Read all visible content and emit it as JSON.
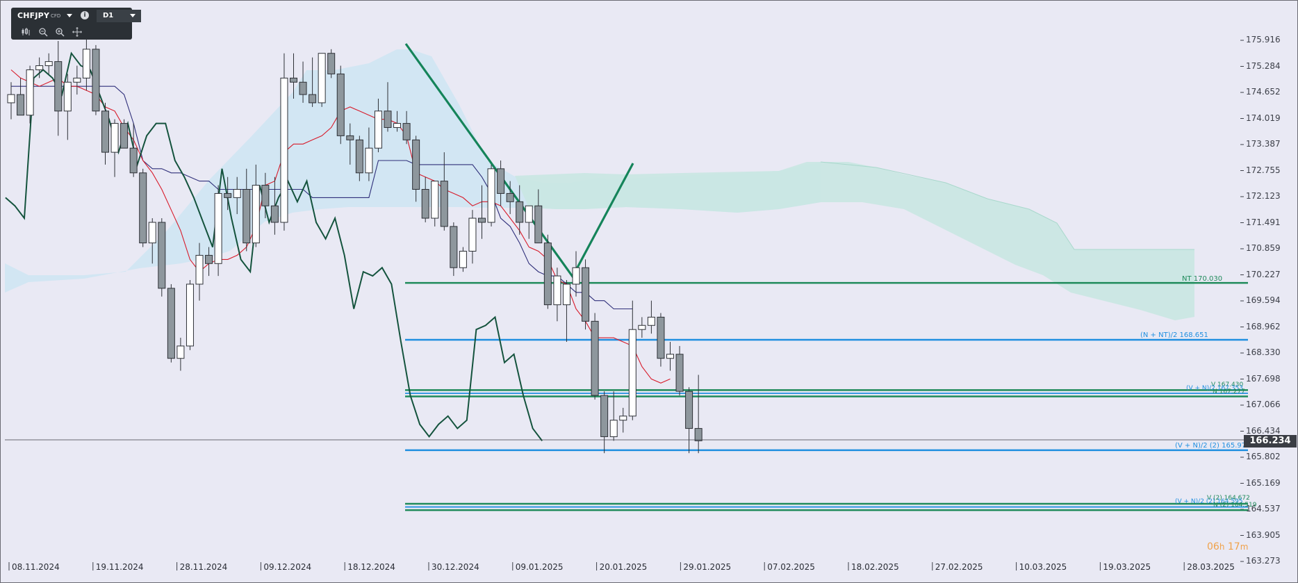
{
  "toolbar": {
    "symbol": "CHFJPY",
    "instrument_type": "CFD",
    "timeframe": "D1",
    "tools": [
      "candles-icon",
      "zoom-out-icon",
      "zoom-in-icon",
      "crosshair-icon"
    ]
  },
  "price_axis": {
    "labels": [
      "175.916",
      "175.284",
      "174.652",
      "174.019",
      "173.387",
      "172.755",
      "172.123",
      "171.491",
      "170.859",
      "170.227",
      "169.594",
      "168.962",
      "168.330",
      "167.698",
      "167.066",
      "166.434",
      "165.802",
      "165.169",
      "164.537",
      "163.905",
      "163.273"
    ],
    "current_price": "166.234"
  },
  "time_axis": {
    "labels": [
      "08.11.2024",
      "19.11.2024",
      "28.11.2024",
      "09.12.2024",
      "18.12.2024",
      "30.12.2024",
      "09.01.2025",
      "20.01.2025",
      "29.01.2025",
      "07.02.2025",
      "18.02.2025",
      "27.02.2025",
      "10.03.2025",
      "19.03.2025",
      "28.03.2025"
    ]
  },
  "levels": {
    "nt": "NT 170.030",
    "n_nt": "(N + NT)/2 168.651",
    "v_upper": "V 167.430",
    "vn_upper": "(V + N)/2 167.353",
    "n_upper": "N 167.277",
    "vn2": "(V + N)/2 (2) 165.972",
    "v2": "V (2) 164.672",
    "vn2b": "(V + N)/2 (2) 164.595",
    "n2": "N (2) 164.519"
  },
  "countdown": {
    "hours": "06",
    "h_unit": "h",
    "minutes": "17",
    "m_unit": "m"
  },
  "colors": {
    "background": "#e9e9f4",
    "bull_candle": "#ffffff",
    "bear_candle": "#8e979d",
    "tenkan": "#d81b2a",
    "kijun": "#2f2f7a",
    "chikou": "#14533d",
    "cloud_bull": "#c8e6f0",
    "cloud_bear": "#cdeae3",
    "level_green": "#1e8a5a",
    "level_blue": "#1f8fe0"
  },
  "chart_data": {
    "type": "candlestick",
    "indicators": [
      "Ichimoku Kinko Hyo"
    ],
    "y_range": [
      163.273,
      176.1
    ],
    "current_price": 166.234,
    "candles": [
      {
        "o": 174.4,
        "h": 174.9,
        "l": 174.0,
        "c": 174.6
      },
      {
        "o": 174.6,
        "h": 175.0,
        "l": 174.1,
        "c": 174.1
      },
      {
        "o": 174.1,
        "h": 175.3,
        "l": 173.9,
        "c": 175.2
      },
      {
        "o": 175.2,
        "h": 175.5,
        "l": 175.0,
        "c": 175.3
      },
      {
        "o": 175.3,
        "h": 175.6,
        "l": 175.1,
        "c": 175.4
      },
      {
        "o": 175.4,
        "h": 175.9,
        "l": 173.6,
        "c": 174.2
      },
      {
        "o": 174.2,
        "h": 175.1,
        "l": 173.5,
        "c": 174.9
      },
      {
        "o": 174.9,
        "h": 175.3,
        "l": 174.6,
        "c": 175.0
      },
      {
        "o": 175.0,
        "h": 176.0,
        "l": 174.7,
        "c": 175.7
      },
      {
        "o": 175.7,
        "h": 175.8,
        "l": 174.1,
        "c": 174.2
      },
      {
        "o": 174.2,
        "h": 174.4,
        "l": 172.9,
        "c": 173.2
      },
      {
        "o": 173.2,
        "h": 174.0,
        "l": 172.6,
        "c": 173.9
      },
      {
        "o": 173.9,
        "h": 174.0,
        "l": 173.3,
        "c": 173.3
      },
      {
        "o": 173.3,
        "h": 173.9,
        "l": 172.6,
        "c": 172.7
      },
      {
        "o": 172.7,
        "h": 172.8,
        "l": 170.9,
        "c": 171.0
      },
      {
        "o": 171.0,
        "h": 171.6,
        "l": 170.5,
        "c": 171.5
      },
      {
        "o": 171.5,
        "h": 171.6,
        "l": 169.7,
        "c": 169.9
      },
      {
        "o": 169.9,
        "h": 170.0,
        "l": 168.1,
        "c": 168.2
      },
      {
        "o": 168.2,
        "h": 168.7,
        "l": 167.9,
        "c": 168.5
      },
      {
        "o": 168.5,
        "h": 170.1,
        "l": 168.4,
        "c": 170.0
      },
      {
        "o": 170.0,
        "h": 171.0,
        "l": 169.6,
        "c": 170.7
      },
      {
        "o": 170.7,
        "h": 170.9,
        "l": 170.2,
        "c": 170.5
      },
      {
        "o": 170.5,
        "h": 172.4,
        "l": 170.2,
        "c": 172.2
      },
      {
        "o": 172.2,
        "h": 172.6,
        "l": 171.8,
        "c": 172.1
      },
      {
        "o": 172.1,
        "h": 172.6,
        "l": 171.7,
        "c": 172.3
      },
      {
        "o": 172.3,
        "h": 172.8,
        "l": 170.8,
        "c": 171.0
      },
      {
        "o": 171.0,
        "h": 172.9,
        "l": 170.9,
        "c": 172.4
      },
      {
        "o": 172.4,
        "h": 172.7,
        "l": 171.6,
        "c": 171.9
      },
      {
        "o": 171.9,
        "h": 172.6,
        "l": 171.2,
        "c": 171.5
      },
      {
        "o": 171.5,
        "h": 175.6,
        "l": 171.3,
        "c": 175.0
      },
      {
        "o": 175.0,
        "h": 175.6,
        "l": 174.5,
        "c": 174.9
      },
      {
        "o": 174.9,
        "h": 175.4,
        "l": 174.4,
        "c": 174.6
      },
      {
        "o": 174.6,
        "h": 175.5,
        "l": 174.3,
        "c": 174.4
      },
      {
        "o": 174.4,
        "h": 175.6,
        "l": 174.3,
        "c": 175.6
      },
      {
        "o": 175.6,
        "h": 175.7,
        "l": 175.0,
        "c": 175.1
      },
      {
        "o": 175.1,
        "h": 175.3,
        "l": 173.4,
        "c": 173.6
      },
      {
        "o": 173.6,
        "h": 173.9,
        "l": 172.9,
        "c": 173.5
      },
      {
        "o": 173.5,
        "h": 173.6,
        "l": 172.5,
        "c": 172.7
      },
      {
        "o": 172.7,
        "h": 173.8,
        "l": 172.5,
        "c": 173.3
      },
      {
        "o": 173.3,
        "h": 174.5,
        "l": 173.2,
        "c": 174.2
      },
      {
        "o": 174.2,
        "h": 174.9,
        "l": 173.7,
        "c": 173.8
      },
      {
        "o": 173.8,
        "h": 174.2,
        "l": 173.7,
        "c": 173.9
      },
      {
        "o": 173.9,
        "h": 174.2,
        "l": 173.4,
        "c": 173.5
      },
      {
        "o": 173.5,
        "h": 173.6,
        "l": 172.0,
        "c": 172.3
      },
      {
        "o": 172.3,
        "h": 172.6,
        "l": 171.5,
        "c": 171.6
      },
      {
        "o": 171.6,
        "h": 172.5,
        "l": 171.4,
        "c": 172.5
      },
      {
        "o": 172.5,
        "h": 173.2,
        "l": 171.3,
        "c": 171.4
      },
      {
        "o": 171.4,
        "h": 171.5,
        "l": 170.2,
        "c": 170.4
      },
      {
        "o": 170.4,
        "h": 170.9,
        "l": 170.3,
        "c": 170.8
      },
      {
        "o": 170.8,
        "h": 171.8,
        "l": 170.5,
        "c": 171.6
      },
      {
        "o": 171.6,
        "h": 172.4,
        "l": 171.1,
        "c": 171.5
      },
      {
        "o": 171.5,
        "h": 172.9,
        "l": 171.4,
        "c": 172.8
      },
      {
        "o": 172.8,
        "h": 173.0,
        "l": 171.9,
        "c": 172.2
      },
      {
        "o": 172.2,
        "h": 172.5,
        "l": 171.7,
        "c": 172.0
      },
      {
        "o": 172.0,
        "h": 172.4,
        "l": 171.2,
        "c": 171.5
      },
      {
        "o": 171.5,
        "h": 171.9,
        "l": 171.1,
        "c": 171.9
      },
      {
        "o": 171.9,
        "h": 172.3,
        "l": 171.1,
        "c": 171.0
      },
      {
        "o": 171.0,
        "h": 171.2,
        "l": 169.4,
        "c": 169.5
      },
      {
        "o": 169.5,
        "h": 170.4,
        "l": 169.1,
        "c": 170.2
      },
      {
        "o": 169.5,
        "h": 170.1,
        "l": 168.6,
        "c": 170.0
      },
      {
        "o": 170.0,
        "h": 170.8,
        "l": 169.7,
        "c": 170.4
      },
      {
        "o": 170.4,
        "h": 170.6,
        "l": 168.9,
        "c": 169.1
      },
      {
        "o": 169.1,
        "h": 169.3,
        "l": 167.2,
        "c": 167.3
      },
      {
        "o": 167.3,
        "h": 167.4,
        "l": 165.9,
        "c": 166.3
      },
      {
        "o": 166.3,
        "h": 167.4,
        "l": 166.2,
        "c": 166.7
      },
      {
        "o": 166.7,
        "h": 167.0,
        "l": 166.4,
        "c": 166.8
      },
      {
        "o": 166.8,
        "h": 169.6,
        "l": 166.7,
        "c": 168.9
      },
      {
        "o": 168.9,
        "h": 169.2,
        "l": 168.7,
        "c": 169.0
      },
      {
        "o": 169.0,
        "h": 169.6,
        "l": 168.8,
        "c": 169.2
      },
      {
        "o": 169.2,
        "h": 169.3,
        "l": 168.0,
        "c": 168.2
      },
      {
        "o": 168.2,
        "h": 168.6,
        "l": 167.9,
        "c": 168.3
      },
      {
        "o": 168.3,
        "h": 168.5,
        "l": 167.3,
        "c": 167.4
      },
      {
        "o": 167.4,
        "h": 167.5,
        "l": 165.9,
        "c": 166.5
      },
      {
        "o": 166.5,
        "h": 167.8,
        "l": 165.9,
        "c": 166.2
      }
    ],
    "tenkan_sen": [
      175.2,
      175.0,
      174.9,
      174.8,
      174.9,
      175.0,
      174.8,
      174.8,
      174.7,
      174.6,
      174.3,
      174.2,
      173.8,
      173.5,
      173.0,
      172.7,
      172.3,
      171.8,
      171.3,
      170.6,
      170.3,
      170.5,
      170.6,
      170.6,
      170.7,
      170.9,
      171.4,
      172.4,
      172.5,
      173.2,
      173.4,
      173.4,
      173.5,
      173.6,
      173.8,
      174.2,
      174.3,
      174.2,
      174.1,
      174.0,
      174.0,
      173.9,
      173.6,
      172.7,
      172.6,
      172.5,
      172.3,
      172.2,
      172.1,
      171.9,
      172.0,
      172.0,
      171.9,
      171.6,
      171.3,
      170.9,
      170.8,
      170.6,
      170.1,
      170.0,
      169.4,
      169.1,
      168.7,
      168.7,
      168.7,
      168.6,
      168.5,
      168.0,
      167.7,
      167.6,
      167.7
    ],
    "kijun_sen": [
      174.8,
      174.8,
      174.8,
      174.8,
      174.8,
      174.8,
      174.8,
      174.8,
      174.8,
      174.8,
      174.8,
      174.8,
      174.6,
      173.9,
      173.0,
      172.8,
      172.8,
      172.7,
      172.7,
      172.6,
      172.5,
      172.5,
      172.3,
      172.3,
      172.3,
      172.3,
      172.3,
      172.3,
      172.3,
      172.3,
      172.3,
      172.3,
      172.1,
      172.1,
      172.1,
      172.1,
      172.1,
      172.1,
      172.1,
      173.0,
      173.0,
      173.0,
      173.0,
      172.9,
      172.9,
      172.9,
      172.9,
      172.9,
      172.9,
      172.9,
      172.6,
      172.2,
      171.6,
      171.4,
      171.0,
      170.5,
      170.3,
      170.2,
      170.2,
      170.0,
      169.8,
      169.8,
      169.6,
      169.6,
      169.4,
      169.4,
      169.4
    ],
    "chikou_span": [
      172.1,
      171.9,
      171.6,
      175.0,
      175.2,
      175.0,
      174.6,
      175.6,
      175.3,
      175.2,
      174.6,
      174.0,
      173.2,
      173.9,
      172.9,
      173.6,
      173.9,
      173.9,
      173.0,
      172.6,
      172.1,
      171.5,
      170.9,
      172.8,
      171.6,
      170.6,
      170.3,
      172.4,
      171.5,
      172.1,
      172.5,
      172.0,
      172.5,
      171.5,
      171.1,
      171.6,
      170.7,
      169.4,
      170.3,
      170.2,
      170.4,
      170.0,
      168.6,
      167.3,
      166.6,
      166.3,
      166.6,
      166.8,
      166.5,
      166.7,
      168.9,
      169.0,
      169.2,
      168.1,
      168.3,
      167.3,
      166.5,
      166.2
    ]
  }
}
